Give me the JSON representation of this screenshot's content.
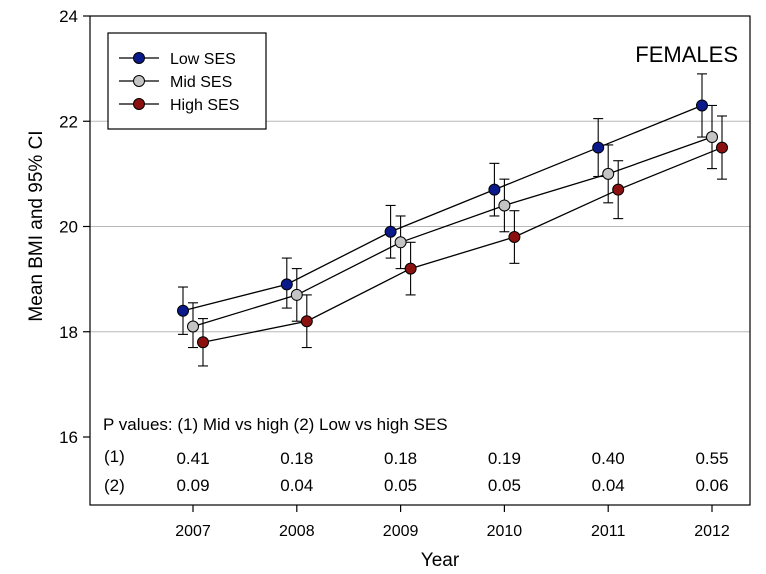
{
  "chart_data": {
    "type": "line",
    "title": "FEMALES",
    "xlabel": "Year",
    "ylabel": "Mean BMI and 95% CI",
    "x": [
      2007,
      2008,
      2009,
      2010,
      2011,
      2012
    ],
    "x_tick_labels": [
      "2007",
      "2008",
      "2009",
      "2010",
      "2011",
      "2012"
    ],
    "ylim": [
      16,
      24
    ],
    "y_ticks": [
      16,
      18,
      20,
      22,
      24
    ],
    "y_tick_labels": [
      "16",
      "18",
      "20",
      "22",
      "24"
    ],
    "grid": "horizontal",
    "legend_position": "top-left",
    "series": [
      {
        "name": "Low SES",
        "color": "#0b1a8a",
        "values": [
          18.4,
          18.9,
          19.9,
          20.7,
          21.5,
          22.3
        ],
        "ci_low": [
          17.95,
          18.45,
          19.4,
          20.2,
          20.95,
          21.7
        ],
        "ci_high": [
          18.85,
          19.4,
          20.4,
          21.2,
          22.05,
          22.9
        ]
      },
      {
        "name": "Mid SES",
        "color": "#c4c4c4",
        "values": [
          18.1,
          18.7,
          19.7,
          20.4,
          21.0,
          21.7
        ],
        "ci_low": [
          17.7,
          18.2,
          19.2,
          19.9,
          20.45,
          21.1
        ],
        "ci_high": [
          18.55,
          19.2,
          20.2,
          20.9,
          21.55,
          22.3
        ]
      },
      {
        "name": "High SES",
        "color": "#8b1010",
        "values": [
          17.8,
          18.2,
          19.2,
          19.8,
          20.7,
          21.5
        ],
        "ci_low": [
          17.35,
          17.7,
          18.7,
          19.3,
          20.15,
          20.9
        ],
        "ci_high": [
          18.25,
          18.7,
          19.7,
          20.3,
          21.25,
          22.1
        ]
      }
    ],
    "annotation": {
      "title": "P values: (1) Mid vs high (2) Low vs high SES",
      "row_labels": [
        "(1)",
        "(2)"
      ],
      "row1": [
        "0.41",
        "0.18",
        "0.18",
        "0.19",
        "0.40",
        "0.55"
      ],
      "row2": [
        "0.09",
        "0.04",
        "0.05",
        "0.05",
        "0.04",
        "0.06"
      ]
    }
  }
}
